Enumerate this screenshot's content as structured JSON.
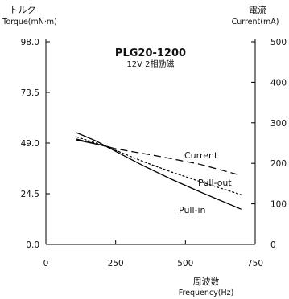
{
  "chart_data": {
    "type": "line",
    "title": "PLG20-1200",
    "subtitle": "12V  2相励磁",
    "left_axis": {
      "label_jp": "トルク",
      "label_en": "Torque(mN·m)",
      "range": [
        0,
        98
      ],
      "ticks": [
        "0.0",
        "24.5",
        "49.0",
        "73.5",
        "98.0"
      ]
    },
    "right_axis": {
      "label_jp": "電流",
      "label_en": "Current(mA)",
      "range": [
        0,
        500
      ],
      "ticks": [
        "0",
        "100",
        "200",
        "300",
        "400",
        "500"
      ]
    },
    "x_axis": {
      "label_jp": "周波数",
      "label_en": "Frequency(Hz)",
      "range": [
        0,
        750
      ],
      "ticks": [
        "0",
        "250",
        "500",
        "750"
      ]
    },
    "series": [
      {
        "name": "Current",
        "axis": "right",
        "style": "dashed",
        "x": [
          110,
          180,
          250,
          400,
          550,
          700
        ],
        "y": [
          260,
          248,
          236,
          218,
          198,
          170
        ]
      },
      {
        "name": "Pull-out",
        "axis": "left",
        "style": "dotted",
        "x": [
          110,
          180,
          250,
          350,
          450,
          550,
          700
        ],
        "y": [
          52,
          49,
          45.5,
          40,
          35,
          30.5,
          24
        ]
      },
      {
        "name": "Pull-in",
        "axis": "left",
        "style": "solid",
        "x": [
          110,
          180,
          250,
          350,
          450,
          550,
          700
        ],
        "y": [
          54,
          50,
          45,
          38,
          31.5,
          25.5,
          17
        ]
      },
      {
        "name": "",
        "axis": "left",
        "style": "solid",
        "x": [
          110,
          180,
          230
        ],
        "y": [
          50.5,
          48.5,
          47
        ]
      }
    ],
    "grid": false
  }
}
